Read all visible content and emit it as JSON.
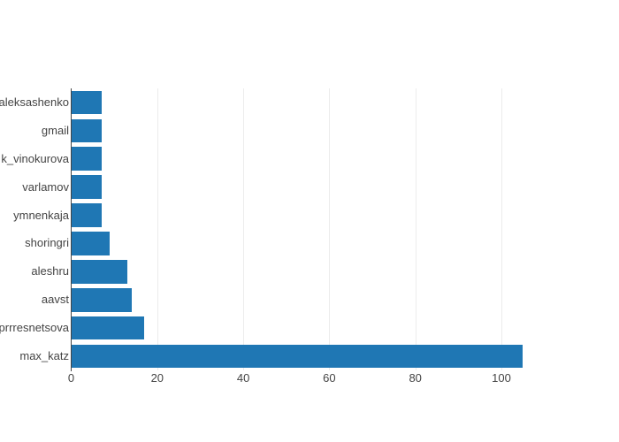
{
  "chart_data": {
    "type": "bar",
    "orientation": "horizontal",
    "title": "",
    "xlabel": "",
    "ylabel": "",
    "categories": [
      "Saleksashenko",
      "gmail",
      "k_vinokurova",
      "varlamov",
      "ymnenkaja",
      "shoringri",
      "aleshru",
      "aavst",
      "prrresnetsova",
      "max_katz"
    ],
    "values": [
      7,
      7,
      7,
      7,
      7,
      9,
      13,
      14,
      17,
      105
    ],
    "xticks": [
      0,
      20,
      40,
      60,
      80,
      100
    ],
    "xlim": [
      0,
      114
    ],
    "grid": true,
    "legend": false,
    "bar_color": "#1f77b4",
    "axis_color": "#444444",
    "grid_color": "#ececec",
    "text_color": "#444444",
    "background_color": "#ffffff"
  }
}
